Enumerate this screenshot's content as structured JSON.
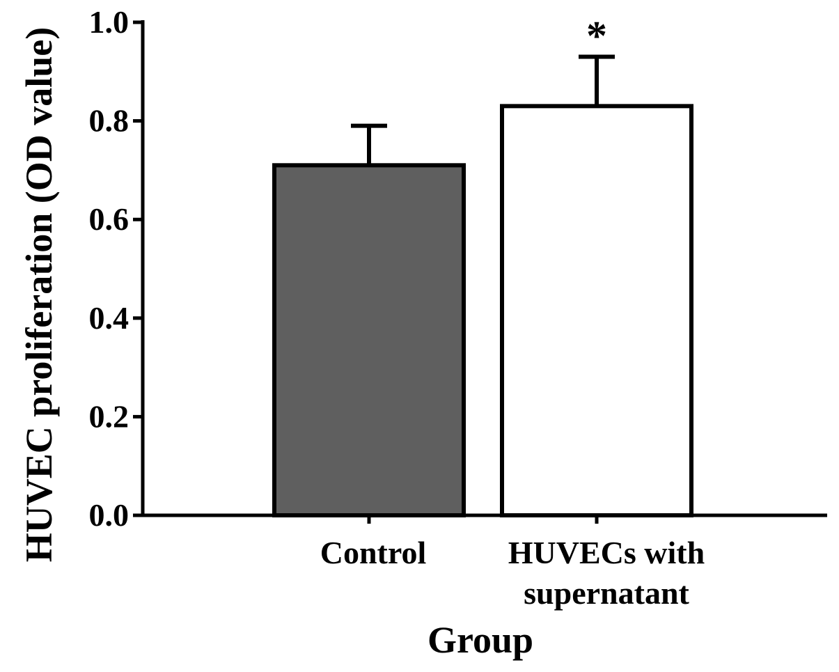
{
  "chart_data": {
    "type": "bar",
    "title": "",
    "xlabel": "Group",
    "ylabel": "HUVEC proliferation (OD value)",
    "ylim": [
      0,
      1.0
    ],
    "yticks": [
      0.0,
      0.2,
      0.4,
      0.6,
      0.8,
      1.0
    ],
    "ytick_labels": [
      "0.0",
      "0.2",
      "0.4",
      "0.6",
      "0.8",
      "1.0"
    ],
    "grid": false,
    "legend": "none",
    "categories": [
      [
        "Control"
      ],
      [
        "HUVECs with",
        "supernatant"
      ]
    ],
    "values": [
      0.71,
      0.83
    ],
    "errors": [
      0.08,
      0.1
    ],
    "annotations": [
      "",
      "*"
    ],
    "colors": {
      "bars": [
        "#5f5f5f",
        "#ffffff"
      ],
      "stroke": "#000000"
    }
  }
}
